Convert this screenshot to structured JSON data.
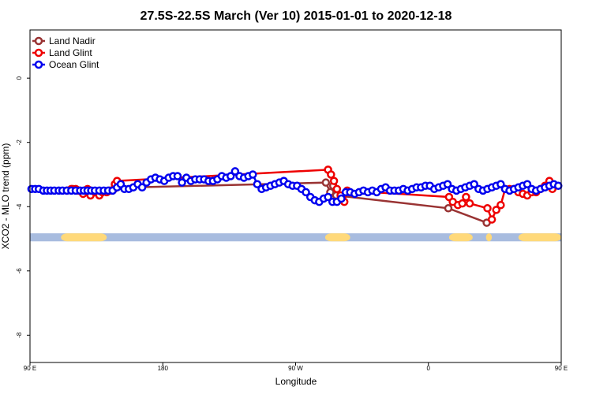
{
  "chart_data": {
    "type": "line",
    "title": "27.5S-22.5S March (Ver 10)   2015-01-01 to 2020-12-18",
    "xlabel": "Longitude",
    "ylabel": "XCO2 - MLO trend (ppm)",
    "xlim": [
      90,
      450
    ],
    "ylim": [
      -8.85,
      1.5
    ],
    "x_ticks": [
      {
        "value": 90,
        "label": "90 E"
      },
      {
        "value": 180,
        "label": "180"
      },
      {
        "value": 270,
        "label": "90 W"
      },
      {
        "value": 360,
        "label": "0"
      },
      {
        "value": 450,
        "label": "90 E"
      },
      {
        "value": 540,
        "label": "180"
      }
    ],
    "y_ticks": [
      {
        "value": 0,
        "label": "0"
      },
      {
        "value": -2,
        "label": "-2"
      },
      {
        "value": -4,
        "label": "-4"
      },
      {
        "value": -6,
        "label": "-6"
      },
      {
        "value": -8,
        "label": "-8"
      }
    ],
    "legend_position": "top-left",
    "series": [
      {
        "name": "Land Nadir",
        "color": "#993333",
        "x": [
          119,
          290.5,
          293.5,
          295.5,
          297.5,
          373.5,
          399.5
        ],
        "y": [
          -3.45,
          -3.25,
          -3.55,
          -3.35,
          -3.65,
          -4.05,
          -4.5
        ]
      },
      {
        "name": "Land Glint",
        "color": "#ee0000",
        "x": [
          115,
          118,
          121,
          123,
          126,
          129,
          131,
          134,
          137,
          139,
          142,
          144,
          147,
          147.5,
          149,
          292,
          294,
          296,
          298,
          300.5,
          303,
          305,
          374,
          376.5,
          380,
          383,
          385.5,
          388,
          400,
          403,
          406,
          409,
          412,
          415,
          418,
          421,
          424,
          427,
          430,
          433,
          436,
          439,
          442,
          444
        ],
        "y": [
          -3.5,
          -3.45,
          -3.45,
          -3.5,
          -3.6,
          -3.45,
          -3.65,
          -3.55,
          -3.65,
          -3.55,
          -3.55,
          -3.5,
          -3.45,
          -3.3,
          -3.2,
          -2.85,
          -3.0,
          -3.2,
          -3.45,
          -3.65,
          -3.85,
          -3.5,
          -3.7,
          -3.85,
          -3.95,
          -3.9,
          -3.7,
          -3.9,
          -4.05,
          -4.4,
          -4.1,
          -3.95,
          -3.45,
          -3.45,
          -3.45,
          -3.55,
          -3.6,
          -3.65,
          -3.55,
          -3.55,
          -3.45,
          -3.35,
          -3.2,
          -3.45
        ]
      },
      {
        "name": "Ocean Glint",
        "color": "#0000ee",
        "x": [
          91,
          93.5,
          96,
          99,
          101.5,
          104,
          106.5,
          109.5,
          112,
          115,
          118,
          121,
          124,
          126.5,
          129,
          131.5,
          134,
          137,
          140,
          143,
          146,
          149,
          151.5,
          154,
          157,
          160,
          163,
          166,
          169,
          172,
          175,
          178,
          181,
          184,
          187,
          190,
          193,
          196,
          199,
          202,
          205,
          208,
          211,
          214,
          217,
          220,
          223,
          226,
          229,
          232,
          235,
          238,
          241,
          244,
          247,
          250,
          253,
          256,
          259,
          262,
          265,
          268,
          271,
          274,
          277,
          280,
          283,
          286,
          289,
          292,
          295,
          298,
          301,
          304,
          307,
          310,
          313,
          316,
          319,
          322,
          325,
          328,
          331,
          334,
          337,
          340,
          343,
          346,
          349,
          352,
          355,
          358,
          361,
          364,
          367,
          370,
          373,
          376,
          379,
          382,
          385,
          388,
          391,
          394,
          397,
          400,
          403,
          406,
          409,
          412,
          415,
          418,
          421,
          424,
          427,
          430,
          433,
          436,
          439,
          442,
          445,
          448
        ],
        "y": [
          -3.45,
          -3.45,
          -3.45,
          -3.5,
          -3.5,
          -3.5,
          -3.5,
          -3.5,
          -3.5,
          -3.5,
          -3.5,
          -3.5,
          -3.5,
          -3.5,
          -3.5,
          -3.5,
          -3.5,
          -3.5,
          -3.5,
          -3.5,
          -3.5,
          -3.4,
          -3.3,
          -3.45,
          -3.45,
          -3.4,
          -3.3,
          -3.4,
          -3.25,
          -3.15,
          -3.1,
          -3.15,
          -3.2,
          -3.1,
          -3.05,
          -3.05,
          -3.25,
          -3.1,
          -3.2,
          -3.15,
          -3.15,
          -3.15,
          -3.2,
          -3.2,
          -3.15,
          -3.05,
          -3.1,
          -3.05,
          -2.9,
          -3.05,
          -3.1,
          -3.05,
          -3.0,
          -3.3,
          -3.45,
          -3.4,
          -3.35,
          -3.3,
          -3.25,
          -3.2,
          -3.3,
          -3.35,
          -3.35,
          -3.45,
          -3.55,
          -3.7,
          -3.8,
          -3.85,
          -3.75,
          -3.7,
          -3.85,
          -3.85,
          -3.75,
          -3.55,
          -3.55,
          -3.6,
          -3.55,
          -3.5,
          -3.55,
          -3.5,
          -3.55,
          -3.45,
          -3.4,
          -3.5,
          -3.5,
          -3.5,
          -3.45,
          -3.5,
          -3.45,
          -3.4,
          -3.4,
          -3.35,
          -3.35,
          -3.45,
          -3.4,
          -3.35,
          -3.3,
          -3.45,
          -3.5,
          -3.45,
          -3.4,
          -3.35,
          -3.3,
          -3.45,
          -3.5,
          -3.45,
          -3.4,
          -3.35,
          -3.3,
          -3.45,
          -3.5,
          -3.45,
          -3.4,
          -3.35,
          -3.3,
          -3.45,
          -3.5,
          -3.45,
          -3.4,
          -3.35,
          -3.3,
          -3.35
        ]
      }
    ],
    "land_ocean_strip": {
      "y_range": [
        -4.83,
        -5.08
      ],
      "ocean_color": "#a8bcdf",
      "land_color": "#ffd97a",
      "land_segments": [
        [
          111,
          142
        ],
        [
          290,
          307
        ],
        [
          374,
          390
        ],
        [
          399,
          403
        ],
        [
          421,
          452
        ]
      ]
    }
  }
}
